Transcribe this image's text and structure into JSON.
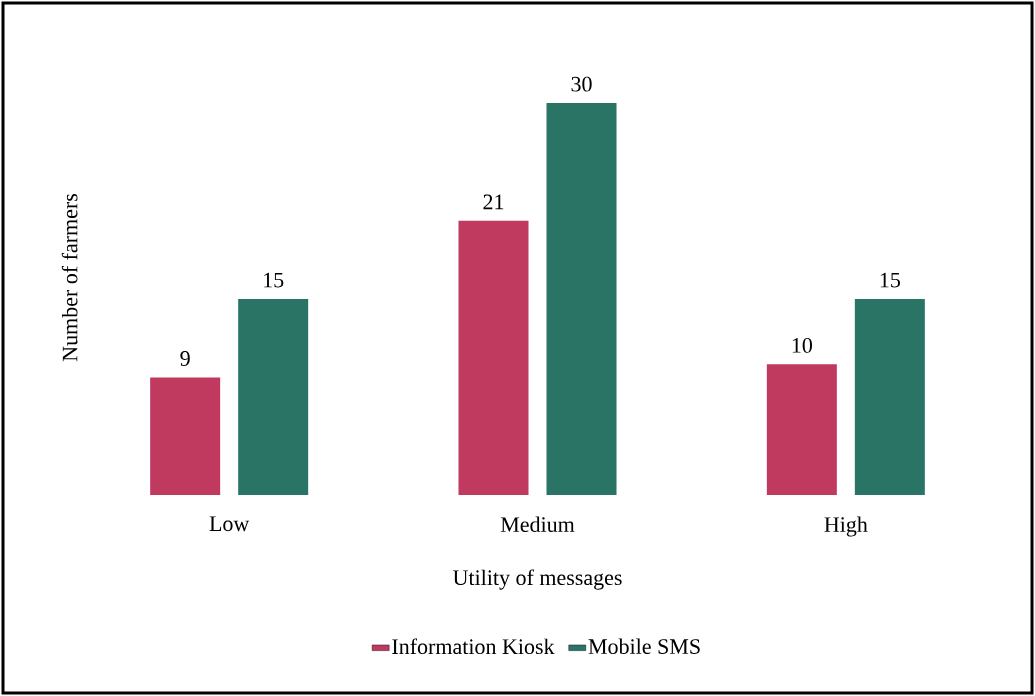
{
  "chart_data": {
    "type": "bar",
    "xlabel": "Utility of messages",
    "ylabel": "Number of farmers",
    "categories": [
      "Low",
      "Medium",
      "High"
    ],
    "series": [
      {
        "name": "Information Kiosk",
        "color": "#c0395f",
        "values": [
          9,
          21,
          10
        ]
      },
      {
        "name": "Mobile SMS",
        "color": "#2a7466",
        "values": [
          15,
          30,
          15
        ]
      }
    ],
    "data_labels": true,
    "legend": "bottom"
  }
}
